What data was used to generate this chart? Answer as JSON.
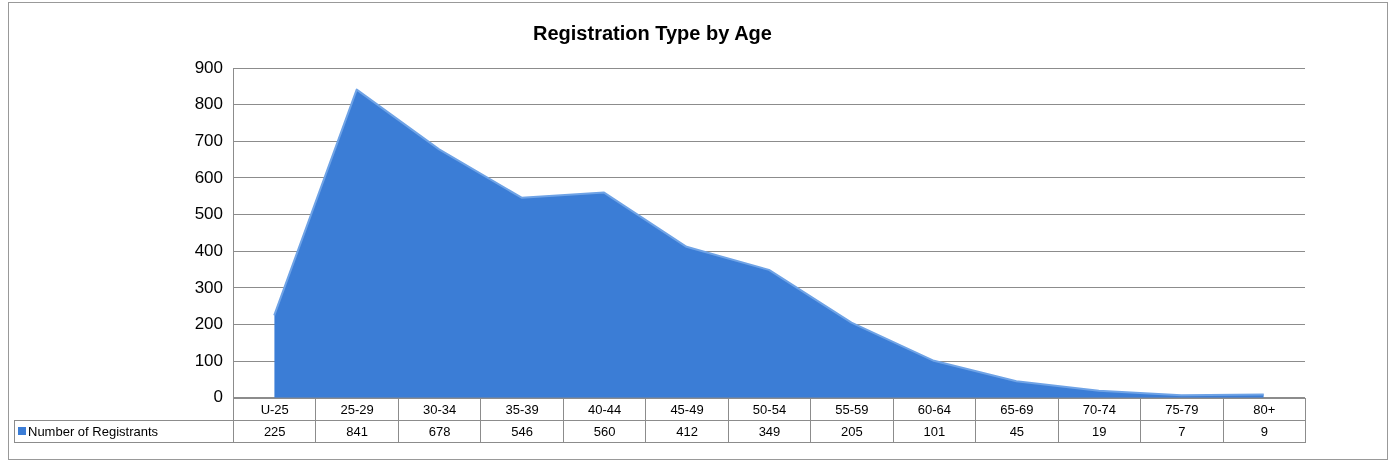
{
  "chart_data": {
    "type": "area",
    "title": "Registration Type by Age",
    "categories": [
      "U-25",
      "25-29",
      "30-34",
      "35-39",
      "40-44",
      "45-49",
      "50-54",
      "55-59",
      "60-64",
      "65-69",
      "70-74",
      "75-79",
      "80+"
    ],
    "series": [
      {
        "name": "Number of Registrants",
        "color": "#3b7dd6",
        "values": [
          225,
          841,
          678,
          546,
          560,
          412,
          349,
          205,
          101,
          45,
          19,
          7,
          9
        ]
      }
    ],
    "ylim": [
      0,
      900
    ],
    "yticks": [
      0,
      100,
      200,
      300,
      400,
      500,
      600,
      700,
      800,
      900
    ],
    "grid": "y",
    "legend": "bottom",
    "data_labels": true
  }
}
